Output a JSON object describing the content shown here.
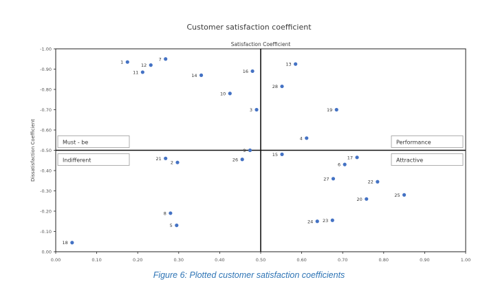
{
  "chart_data": {
    "type": "scatter",
    "title": "Customer satisfaction coefficient",
    "inner_title": "Satisfaction Coefficient",
    "ylabel": "Dissatisfaction Coefficient",
    "xlabel": "",
    "xlim": [
      0,
      1
    ],
    "ylim": [
      0,
      -1
    ],
    "x_ticks": [
      "0.00",
      "0.10",
      "0.20",
      "0.30",
      "0.40",
      "0.50",
      "0.60",
      "0.70",
      "0.80",
      "0.90",
      "1.00"
    ],
    "x_tick_values": [
      0,
      0.1,
      0.2,
      0.3,
      0.4,
      0.5,
      0.6,
      0.7,
      0.8,
      0.9,
      1.0
    ],
    "y_ticks": [
      "0.00",
      "-0.10",
      "-0.20",
      "-0.30",
      "-0.40",
      "-0.50",
      "-0.60",
      "-0.70",
      "-0.80",
      "-0.90",
      "-1.00"
    ],
    "y_tick_values": [
      0,
      -0.1,
      -0.2,
      -0.3,
      -0.4,
      -0.5,
      -0.6,
      -0.7,
      -0.8,
      -0.9,
      -1.0
    ],
    "divider": {
      "x": 0.5,
      "y": -0.5
    },
    "color": "#4472c4",
    "quadrants": {
      "top_left": "Must - be",
      "top_right": "Performance",
      "bottom_left": "Indifferent",
      "bottom_right": "Attractive"
    },
    "points": [
      {
        "label": "1",
        "x": 0.175,
        "y": -0.935
      },
      {
        "label": "2",
        "x": 0.297,
        "y": -0.44
      },
      {
        "label": "3",
        "x": 0.49,
        "y": -0.7
      },
      {
        "label": "4",
        "x": 0.612,
        "y": -0.56
      },
      {
        "label": "5",
        "x": 0.295,
        "y": -0.13
      },
      {
        "label": "6",
        "x": 0.705,
        "y": -0.43
      },
      {
        "label": "7",
        "x": 0.268,
        "y": -0.95
      },
      {
        "label": "8",
        "x": 0.28,
        "y": -0.19
      },
      {
        "label": "9",
        "x": 0.474,
        "y": -0.5
      },
      {
        "label": "10",
        "x": 0.425,
        "y": -0.78
      },
      {
        "label": "11",
        "x": 0.212,
        "y": -0.885
      },
      {
        "label": "12",
        "x": 0.232,
        "y": -0.92
      },
      {
        "label": "13",
        "x": 0.585,
        "y": -0.925
      },
      {
        "label": "14",
        "x": 0.355,
        "y": -0.87
      },
      {
        "label": "15",
        "x": 0.552,
        "y": -0.48
      },
      {
        "label": "16",
        "x": 0.48,
        "y": -0.89
      },
      {
        "label": "17",
        "x": 0.735,
        "y": -0.465
      },
      {
        "label": "18",
        "x": 0.04,
        "y": -0.045
      },
      {
        "label": "19",
        "x": 0.685,
        "y": -0.7
      },
      {
        "label": "20",
        "x": 0.758,
        "y": -0.26
      },
      {
        "label": "21",
        "x": 0.268,
        "y": -0.46
      },
      {
        "label": "22",
        "x": 0.785,
        "y": -0.345
      },
      {
        "label": "23",
        "x": 0.675,
        "y": -0.155
      },
      {
        "label": "24",
        "x": 0.638,
        "y": -0.15
      },
      {
        "label": "25",
        "x": 0.85,
        "y": -0.28
      },
      {
        "label": "26",
        "x": 0.455,
        "y": -0.455
      },
      {
        "label": "27",
        "x": 0.677,
        "y": -0.36
      },
      {
        "label": "28",
        "x": 0.552,
        "y": -0.815
      }
    ]
  },
  "caption": "Figure 6: Plotted customer satisfaction coefficients"
}
